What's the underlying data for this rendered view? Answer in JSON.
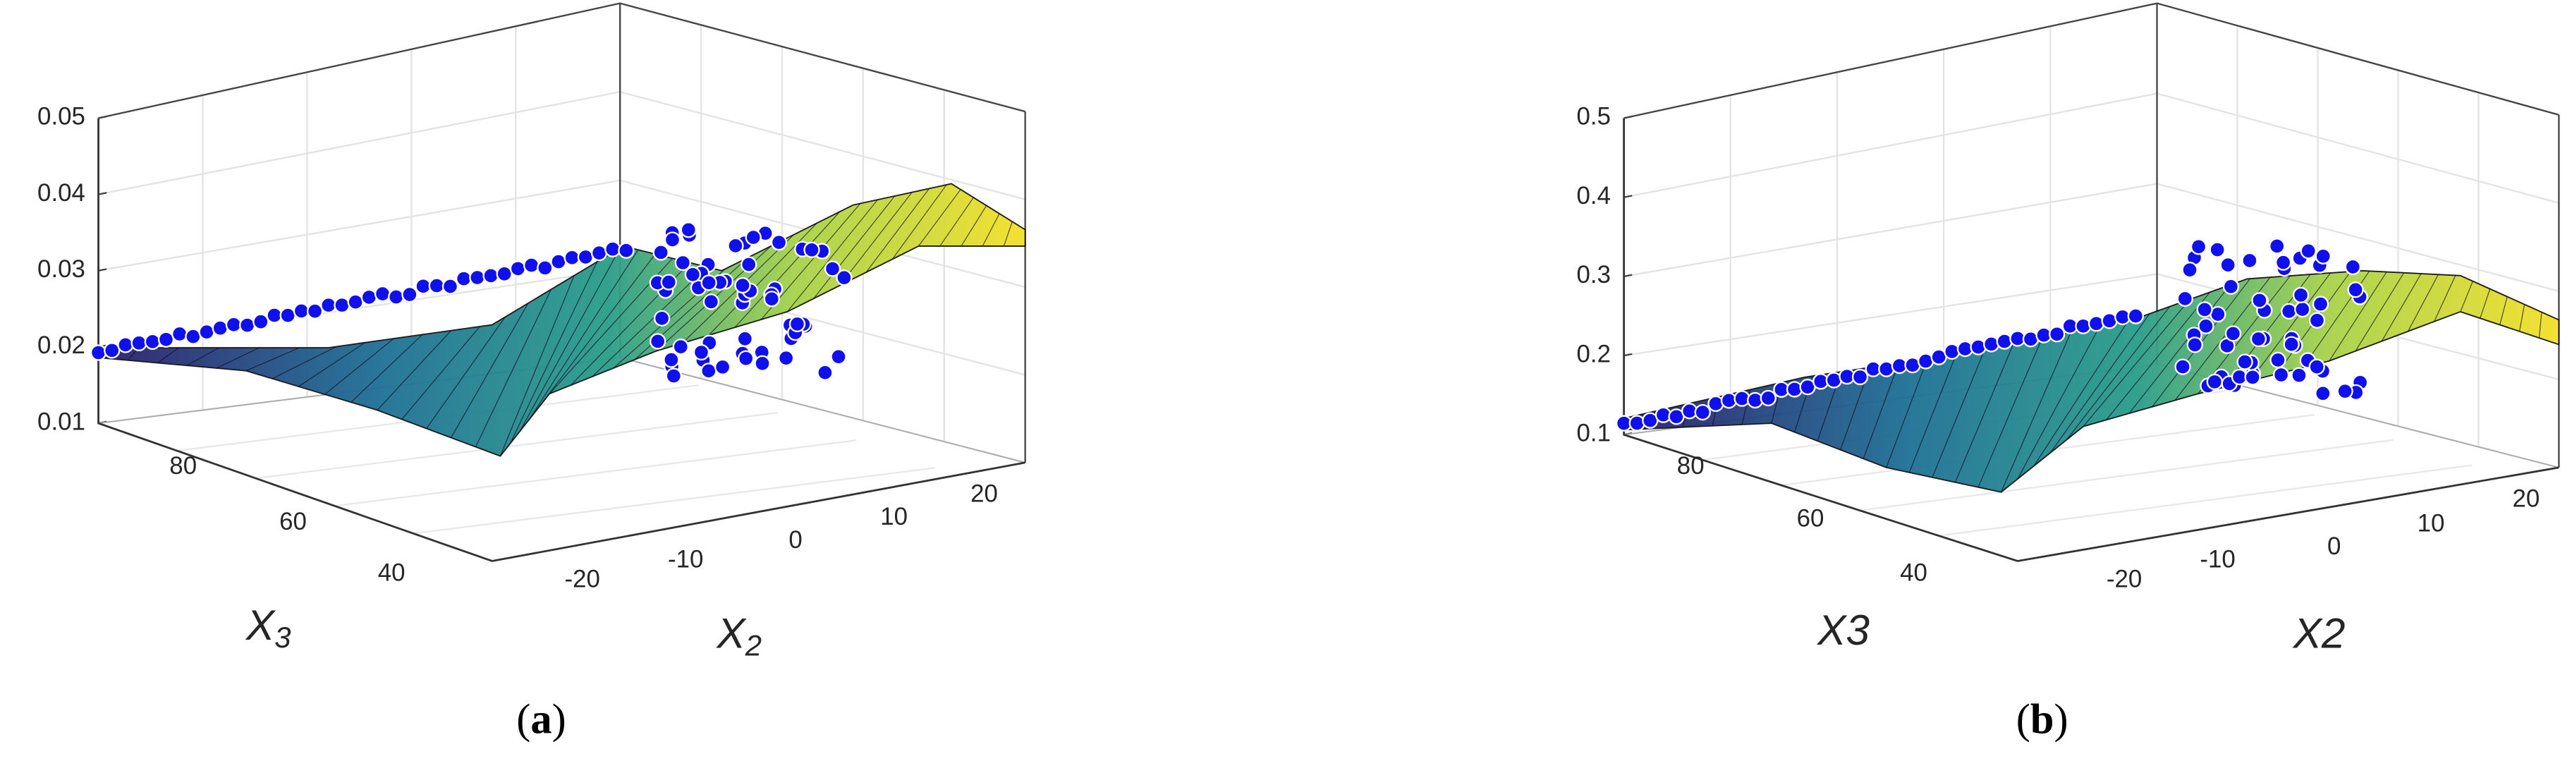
{
  "panels": [
    {
      "label_open": "(",
      "label_letter": "a",
      "label_close": ")",
      "z_ticks": [
        0.05,
        0.04,
        0.03,
        0.02,
        0.01
      ],
      "x3_ticks": [
        80,
        60,
        40
      ],
      "x2_ticks": [
        -20,
        -10,
        0,
        10,
        20
      ],
      "x3_label": "X",
      "x3_sub": "3",
      "x2_label": "X",
      "x2_sub": "2"
    },
    {
      "label_open": "(",
      "label_letter": "b",
      "label_close": ")",
      "z_ticks": [
        0.5,
        0.4,
        0.3,
        0.2,
        0.1
      ],
      "x3_ticks": [
        80,
        60,
        40
      ],
      "x2_ticks": [
        -20,
        -10,
        0,
        10,
        20
      ],
      "x3_label": "X3",
      "x2_label": "X2"
    }
  ]
}
